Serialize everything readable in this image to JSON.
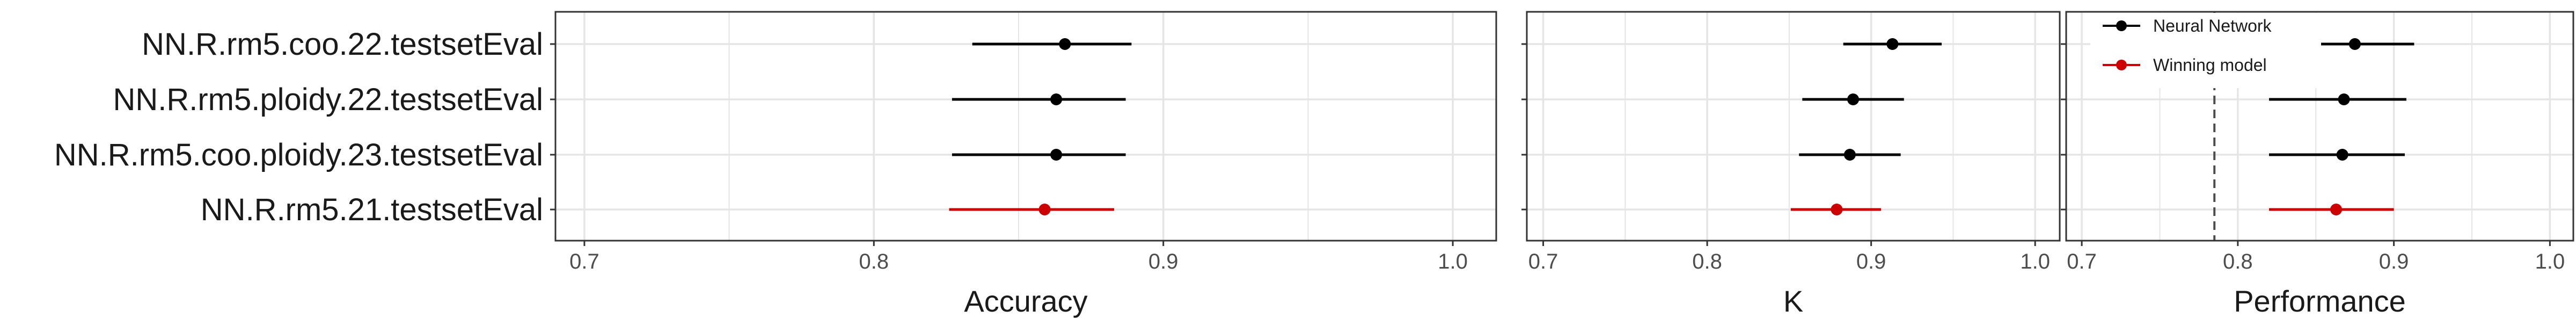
{
  "colors": {
    "panel_border": "#333333",
    "grid": "#e5e5e5",
    "tick": "#333333",
    "ref_line": "#4d4d4d"
  },
  "chart_data": [
    {
      "type": "forest",
      "xlabel": "Accuracy",
      "xlim": [
        0.69,
        1.015
      ],
      "xticks": [
        0.7,
        0.8,
        0.9,
        1.0
      ],
      "xtick_labels": [
        "0.7",
        "0.8",
        "0.9",
        "1.0"
      ],
      "grid": true,
      "rows": [
        {
          "label": "NN.R.rm5.coo.22.testsetEval",
          "estimate": 0.866,
          "lower": 0.834,
          "upper": 0.889,
          "series": "Neural Network"
        },
        {
          "label": "NN.R.rm5.ploidy.22.testsetEval",
          "estimate": 0.863,
          "lower": 0.827,
          "upper": 0.887,
          "series": "Neural Network"
        },
        {
          "label": "NN.R.rm5.coo.ploidy.23.testsetEval",
          "estimate": 0.863,
          "lower": 0.827,
          "upper": 0.887,
          "series": "Neural Network"
        },
        {
          "label": "NN.R.rm5.21.testsetEval",
          "estimate": 0.859,
          "lower": 0.826,
          "upper": 0.883,
          "series": "Winning model"
        }
      ]
    },
    {
      "type": "forest",
      "xlabel": "K",
      "xlim": [
        0.69,
        1.015
      ],
      "xticks": [
        0.7,
        0.8,
        0.9,
        1.0
      ],
      "xtick_labels": [
        "0.7",
        "0.8",
        "0.9",
        "1.0"
      ],
      "grid": true,
      "rows": [
        {
          "label": "NN.R.rm5.coo.22.testsetEval",
          "estimate": 0.913,
          "lower": 0.883,
          "upper": 0.943,
          "series": "Neural Network"
        },
        {
          "label": "NN.R.rm5.ploidy.22.testsetEval",
          "estimate": 0.889,
          "lower": 0.858,
          "upper": 0.92,
          "series": "Neural Network"
        },
        {
          "label": "NN.R.rm5.coo.ploidy.23.testsetEval",
          "estimate": 0.887,
          "lower": 0.856,
          "upper": 0.918,
          "series": "Neural Network"
        },
        {
          "label": "NN.R.rm5.21.testsetEval",
          "estimate": 0.879,
          "lower": 0.851,
          "upper": 0.906,
          "series": "Winning model"
        }
      ]
    },
    {
      "type": "forest",
      "xlabel": "Performance",
      "xlim": [
        0.69,
        1.015
      ],
      "xticks": [
        0.7,
        0.8,
        0.9,
        1.0
      ],
      "xtick_labels": [
        "0.7",
        "0.8",
        "0.9",
        "1.0"
      ],
      "grid": true,
      "reference_line": 0.785,
      "legend": {
        "placement": "top-left",
        "entries": [
          {
            "label": "Neural Network",
            "color": "#000000"
          },
          {
            "label": "Winning model",
            "color": "#cc0000"
          }
        ]
      },
      "rows": [
        {
          "label": "NN.R.rm5.coo.22.testsetEval",
          "estimate": 0.875,
          "lower": 0.837,
          "upper": 0.913,
          "series": "Neural Network"
        },
        {
          "label": "NN.R.rm5.ploidy.22.testsetEval",
          "estimate": 0.868,
          "lower": 0.82,
          "upper": 0.908,
          "series": "Neural Network"
        },
        {
          "label": "NN.R.rm5.coo.ploidy.23.testsetEval",
          "estimate": 0.867,
          "lower": 0.82,
          "upper": 0.907,
          "series": "Neural Network"
        },
        {
          "label": "NN.R.rm5.21.testsetEval",
          "estimate": 0.863,
          "lower": 0.82,
          "upper": 0.9,
          "series": "Winning model"
        }
      ]
    }
  ]
}
